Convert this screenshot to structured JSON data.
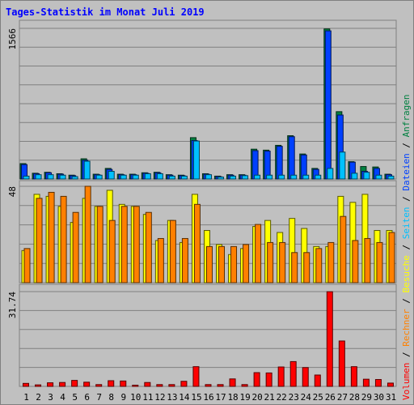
{
  "title": "Tages-Statistik im Monat Juli 2019",
  "colors": {
    "background": "#c0c0c0",
    "title": "#0000ff",
    "anfragen": "#008040",
    "dateien": "#0040ff",
    "seiten": "#00c0ff",
    "besuche": "#ffff00",
    "rechner": "#ff8000",
    "volumen": "#ff0000",
    "weekend_day_label": "#008040"
  },
  "chart_data": [
    {
      "type": "bar",
      "panel": "top",
      "ymax_label": "1566",
      "ylim": [
        0,
        1566
      ],
      "categories": [
        "1",
        "2",
        "3",
        "4",
        "5",
        "6",
        "7",
        "8",
        "9",
        "10",
        "11",
        "12",
        "13",
        "14",
        "15",
        "16",
        "17",
        "18",
        "19",
        "20",
        "21",
        "22",
        "23",
        "24",
        "25",
        "26",
        "27",
        "28",
        "29",
        "30",
        "31"
      ],
      "weekend_days": [
        "6",
        "7",
        "13",
        "14",
        "20",
        "21",
        "27",
        "28"
      ],
      "series": [
        {
          "name": "Anfragen",
          "values": [
            160,
            60,
            70,
            55,
            40,
            210,
            50,
            110,
            50,
            50,
            65,
            70,
            45,
            40,
            430,
            55,
            30,
            45,
            45,
            310,
            300,
            350,
            450,
            260,
            110,
            1560,
            700,
            180,
            130,
            125,
            50
          ]
        },
        {
          "name": "Dateien",
          "values": [
            150,
            55,
            65,
            50,
            35,
            195,
            45,
            100,
            45,
            45,
            60,
            65,
            40,
            35,
            400,
            50,
            25,
            40,
            40,
            295,
            290,
            340,
            440,
            250,
            100,
            1540,
            665,
            175,
            80,
            110,
            45
          ]
        },
        {
          "name": "Seiten",
          "values": [
            30,
            45,
            45,
            40,
            25,
            185,
            40,
            80,
            40,
            40,
            55,
            55,
            30,
            30,
            395,
            45,
            20,
            30,
            35,
            40,
            40,
            40,
            40,
            40,
            40,
            110,
            280,
            60,
            70,
            40,
            30
          ]
        }
      ]
    },
    {
      "type": "bar",
      "panel": "middle",
      "ymax_label": "48",
      "ylim": [
        0,
        48
      ],
      "categories": [
        "1",
        "2",
        "3",
        "4",
        "5",
        "6",
        "7",
        "8",
        "9",
        "10",
        "11",
        "12",
        "13",
        "14",
        "15",
        "16",
        "17",
        "18",
        "19",
        "20",
        "21",
        "22",
        "23",
        "24",
        "25",
        "26",
        "27",
        "28",
        "29",
        "30",
        "31"
      ],
      "series": [
        {
          "name": "Besuche",
          "values": [
            16,
            44,
            43,
            38,
            30,
            42,
            38,
            46,
            39,
            38,
            34,
            21,
            31,
            20,
            44,
            26,
            19,
            14,
            17,
            28,
            31,
            25,
            32,
            27,
            18,
            18,
            43,
            40,
            44,
            26,
            26
          ]
        },
        {
          "name": "Rechner",
          "values": [
            17,
            42,
            45,
            43,
            35,
            48,
            38,
            31,
            38,
            38,
            35,
            22,
            31,
            22,
            39,
            18,
            18,
            18,
            19,
            29,
            20,
            20,
            15,
            15,
            17,
            20,
            33,
            21,
            22,
            20,
            25
          ]
        }
      ]
    },
    {
      "type": "bar",
      "panel": "bottom",
      "ymax_label": "31.74",
      "ylim": [
        0,
        31.74
      ],
      "categories": [
        "1",
        "2",
        "3",
        "4",
        "5",
        "6",
        "7",
        "8",
        "9",
        "10",
        "11",
        "12",
        "13",
        "14",
        "15",
        "16",
        "17",
        "18",
        "19",
        "20",
        "21",
        "22",
        "23",
        "24",
        "25",
        "26",
        "27",
        "28",
        "29",
        "30",
        "31"
      ],
      "series": [
        {
          "name": "Volumen",
          "values": [
            1,
            0.5,
            1.2,
            1.3,
            2,
            1.4,
            0.6,
            1.9,
            1.8,
            0.4,
            1.3,
            0.6,
            0.6,
            1.7,
            6.6,
            0.6,
            0.6,
            2.5,
            0.6,
            4.6,
            4.5,
            6.5,
            8.3,
            6.3,
            3.8,
            31.7,
            15.2,
            6.6,
            2.4,
            2.3,
            1.1
          ]
        }
      ]
    }
  ],
  "legend_right": [
    {
      "label": "Anfragen",
      "color": "#008040"
    },
    {
      "label": "Dateien",
      "color": "#0040ff"
    },
    {
      "label": "Seiten",
      "color": "#00c0ff"
    },
    {
      "label": "Besuche",
      "color": "#ffff00"
    },
    {
      "label": "Rechner",
      "color": "#ff8000"
    },
    {
      "label": "Volumen",
      "color": "#ff0000"
    }
  ],
  "legend_separator": " / "
}
